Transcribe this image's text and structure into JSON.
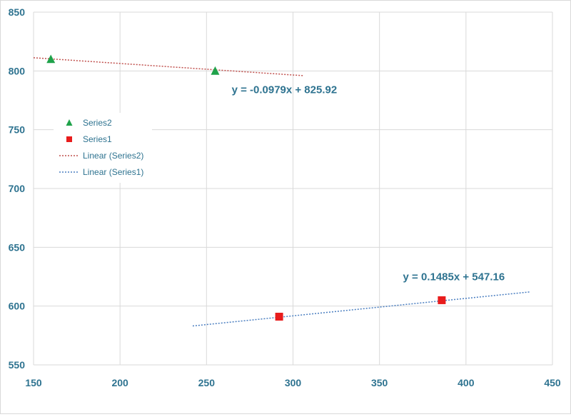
{
  "chart_data": {
    "type": "scatter",
    "title": "",
    "xlabel": "",
    "ylabel": "",
    "xlim": [
      150,
      450
    ],
    "ylim": [
      550,
      850
    ],
    "x_ticks": [
      150,
      200,
      250,
      300,
      350,
      400,
      450
    ],
    "y_ticks": [
      550,
      600,
      650,
      700,
      750,
      800,
      850
    ],
    "x_tick_labels": [
      "150",
      "200",
      "250",
      "300",
      "350",
      "400",
      "450"
    ],
    "y_tick_labels": [
      "550",
      "600",
      "650",
      "700",
      "750",
      "800",
      "850"
    ],
    "grid": true,
    "legend_position": "left",
    "series": [
      {
        "name": "Series2",
        "marker": "triangle",
        "color": "#1fa24a",
        "points": [
          {
            "x": 160,
            "y": 810
          },
          {
            "x": 255,
            "y": 800
          }
        ]
      },
      {
        "name": "Series1",
        "marker": "square",
        "color": "#e81c1c",
        "points": [
          {
            "x": 292,
            "y": 591
          },
          {
            "x": 386,
            "y": 605
          }
        ]
      }
    ],
    "trendlines": [
      {
        "name": "Linear (Series2)",
        "color": "#c0504d",
        "slope": -0.0979,
        "intercept": 825.92,
        "x_start": 150,
        "x_end": 306,
        "equation": "y = -0.0979x + 825.92",
        "equation_anchor": {
          "x": 295,
          "y": 781
        }
      },
      {
        "name": "Linear (Series1)",
        "color": "#4a7ec0",
        "slope": 0.1485,
        "intercept": 547.16,
        "x_start": 242,
        "x_end": 437,
        "equation": "y = 0.1485x + 547.16",
        "equation_anchor": {
          "x": 393,
          "y": 622
        }
      }
    ],
    "legend": [
      {
        "label": "Series2",
        "kind": "marker",
        "marker": "triangle",
        "color": "#1fa24a"
      },
      {
        "label": "Series1",
        "kind": "marker",
        "marker": "square",
        "color": "#e81c1c"
      },
      {
        "label": "Linear (Series2)",
        "kind": "line",
        "color": "#c0504d"
      },
      {
        "label": "Linear (Series1)",
        "kind": "line",
        "color": "#4a7ec0"
      }
    ]
  }
}
